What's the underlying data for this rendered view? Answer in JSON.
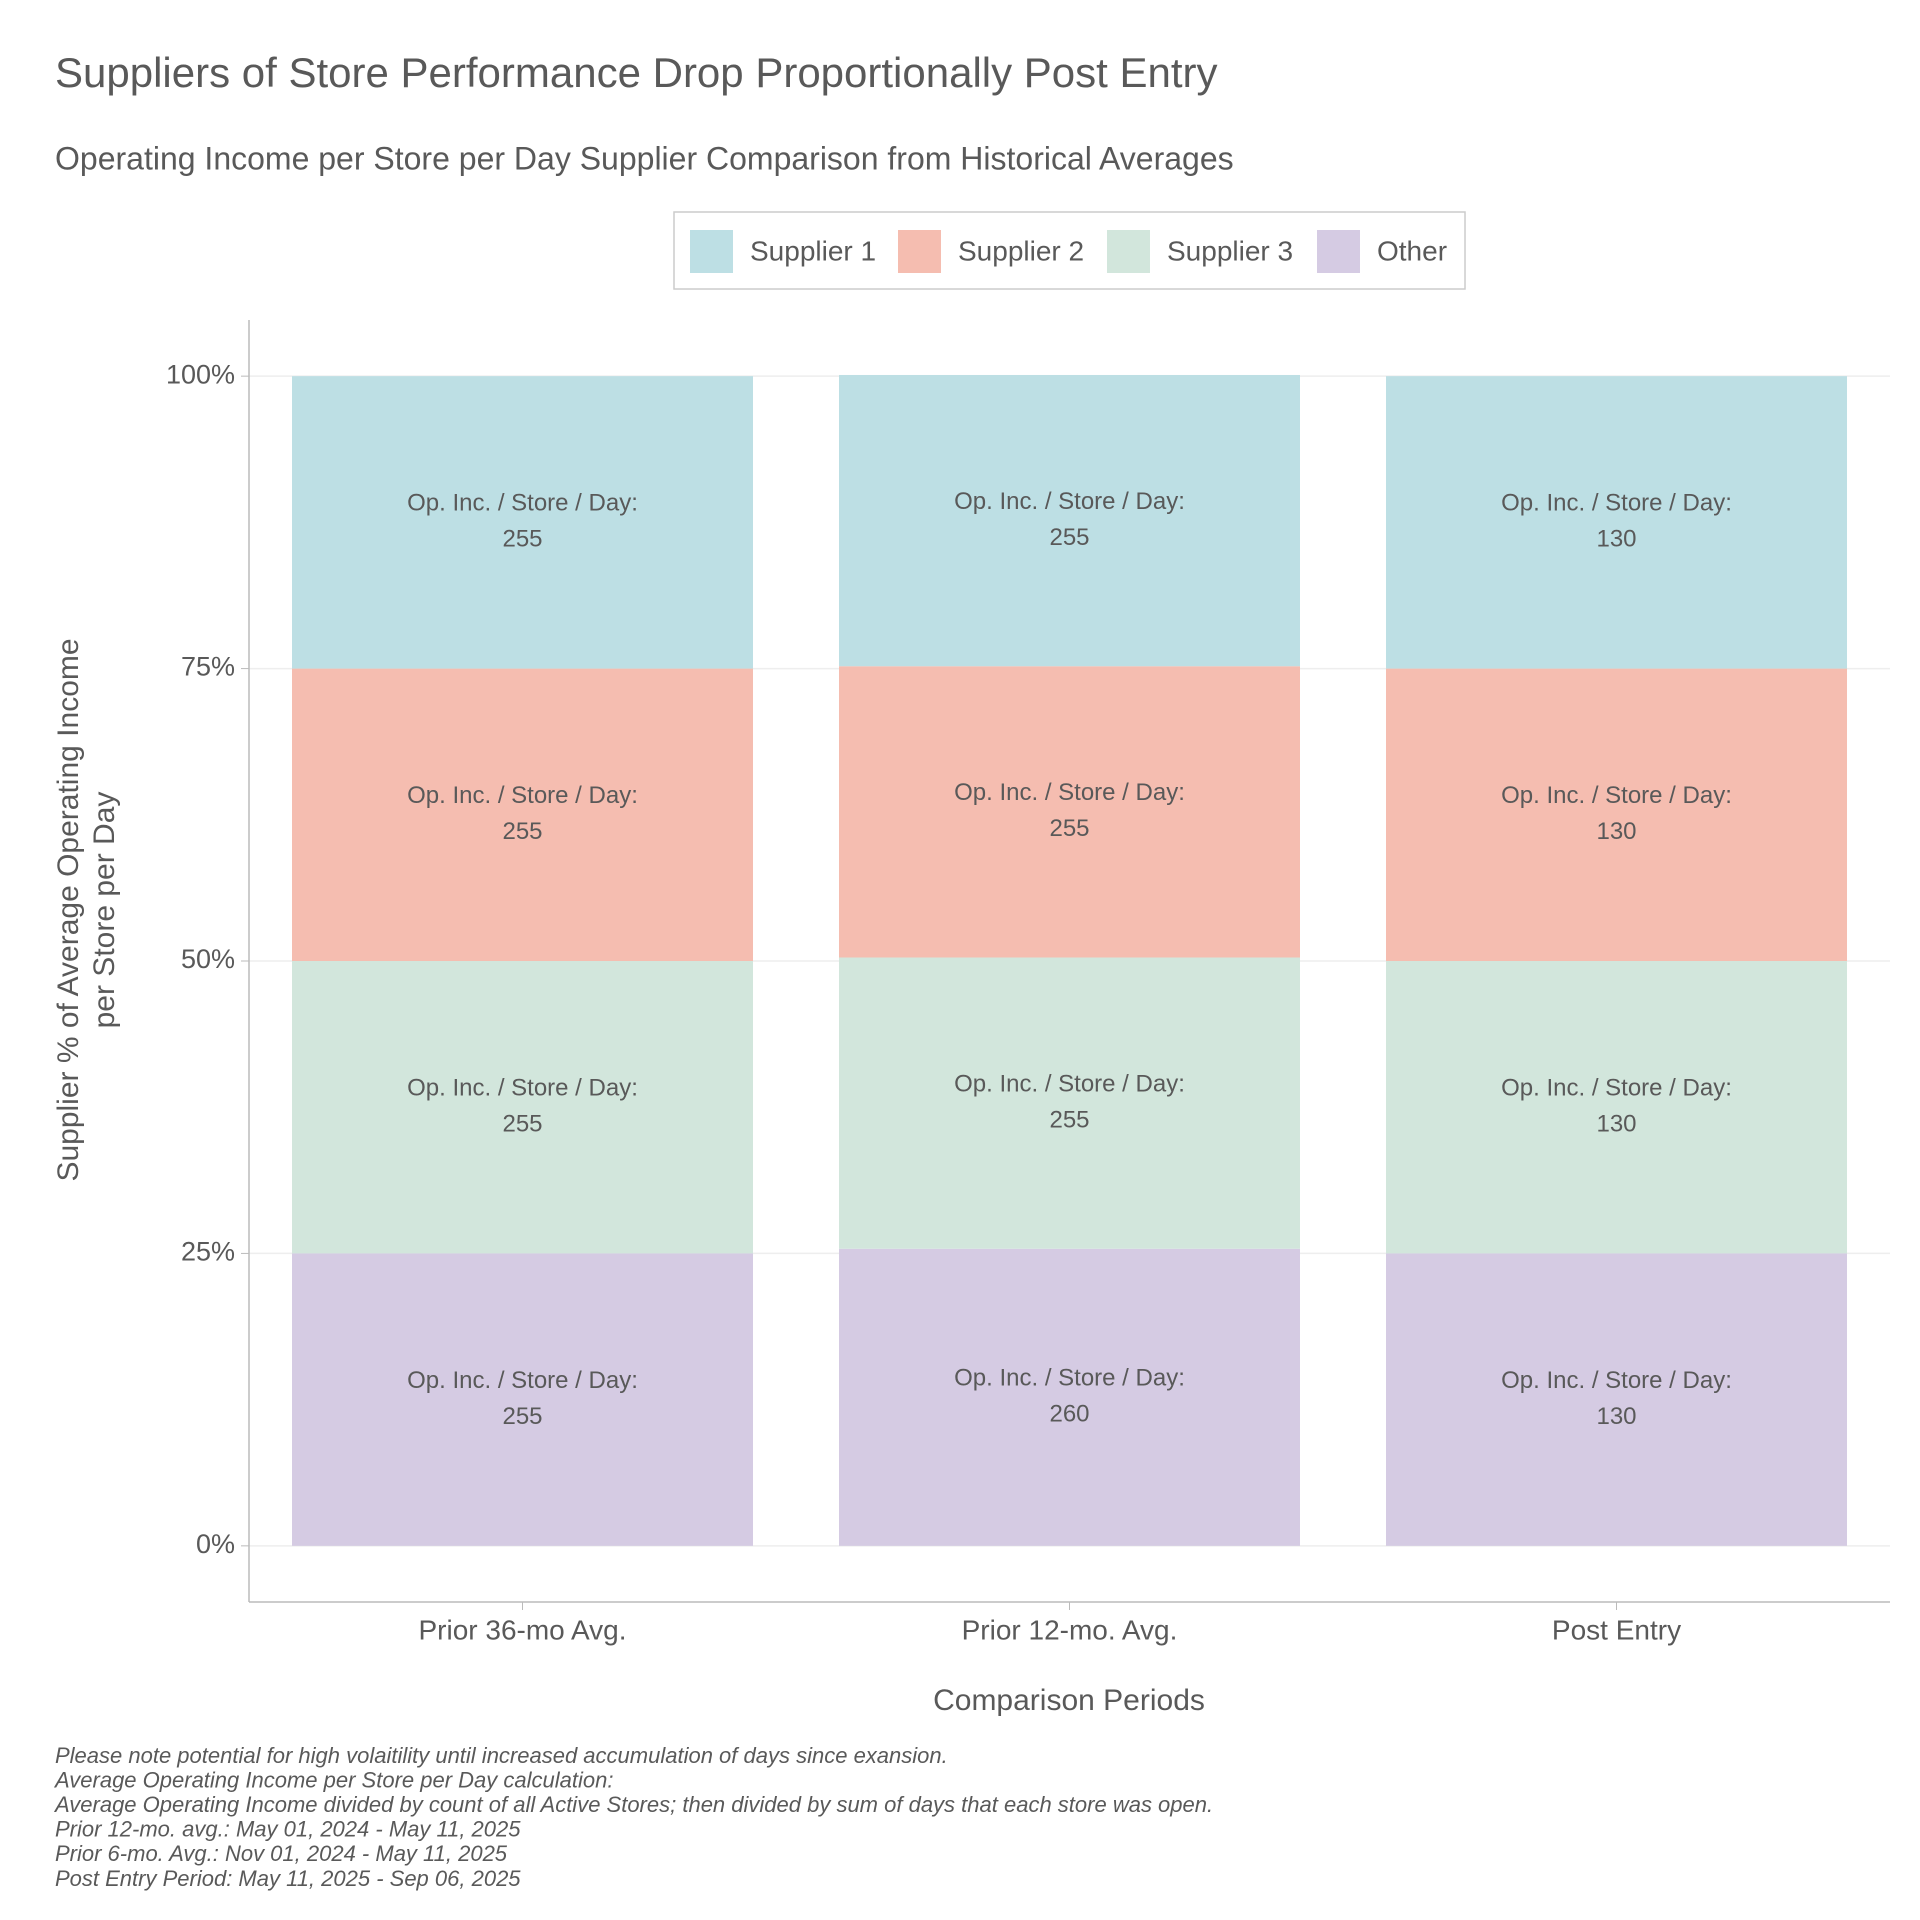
{
  "chart_data": {
    "type": "bar",
    "stacked": true,
    "title": "Suppliers of Store Performance Drop Proportionally Post Entry",
    "subtitle": "Operating Income per Store per Day Supplier Comparison from Historical Averages",
    "xlabel": "Comparison Periods",
    "ylabel": [
      "Supplier % of Average Operating Income",
      "per Store per Day"
    ],
    "categories": [
      "Prior 36-mo Avg.",
      "Prior 12-mo. Avg.",
      "Post Entry"
    ],
    "series": [
      {
        "name": "Supplier 1",
        "color": "#bddfe4",
        "values": [
          25,
          24.9,
          25
        ],
        "op_inc": [
          255,
          255,
          130
        ]
      },
      {
        "name": "Supplier 2",
        "color": "#f5bdb0",
        "values": [
          25,
          24.9,
          25
        ],
        "op_inc": [
          255,
          255,
          130
        ]
      },
      {
        "name": "Supplier 3",
        "color": "#d2e6dc",
        "values": [
          25,
          24.9,
          25
        ],
        "op_inc": [
          255,
          255,
          130
        ]
      },
      {
        "name": "Other",
        "color": "#d5cbe3",
        "values": [
          25,
          25.4,
          25
        ],
        "op_inc": [
          255,
          260,
          130
        ]
      }
    ],
    "label_prefix": "Op. Inc. / Store / Day:",
    "ylim": [
      -4.8,
      104.8
    ],
    "yticks": [
      {
        "value": 0,
        "label": "0%"
      },
      {
        "value": 25,
        "label": "25%"
      },
      {
        "value": 50,
        "label": "50%"
      },
      {
        "value": 75,
        "label": "75%"
      },
      {
        "value": 100,
        "label": "100%"
      }
    ],
    "grid": true,
    "legend": "top",
    "footnotes": [
      "Please note potential for high volaitility until increased accumulation of days since exansion.",
      "Average Operating Income per Store per Day calculation:",
      "Average Operating Income divided by count of all Active Stores; then divided by sum of days that each store was open.",
      "Prior 12-mo. avg.: May 01, 2024 - May 11, 2025",
      "Prior 6-mo. Avg.: Nov 01, 2024 - May 11, 2025",
      "Post Entry Period: May 11, 2025 - Sep 06, 2025"
    ]
  }
}
